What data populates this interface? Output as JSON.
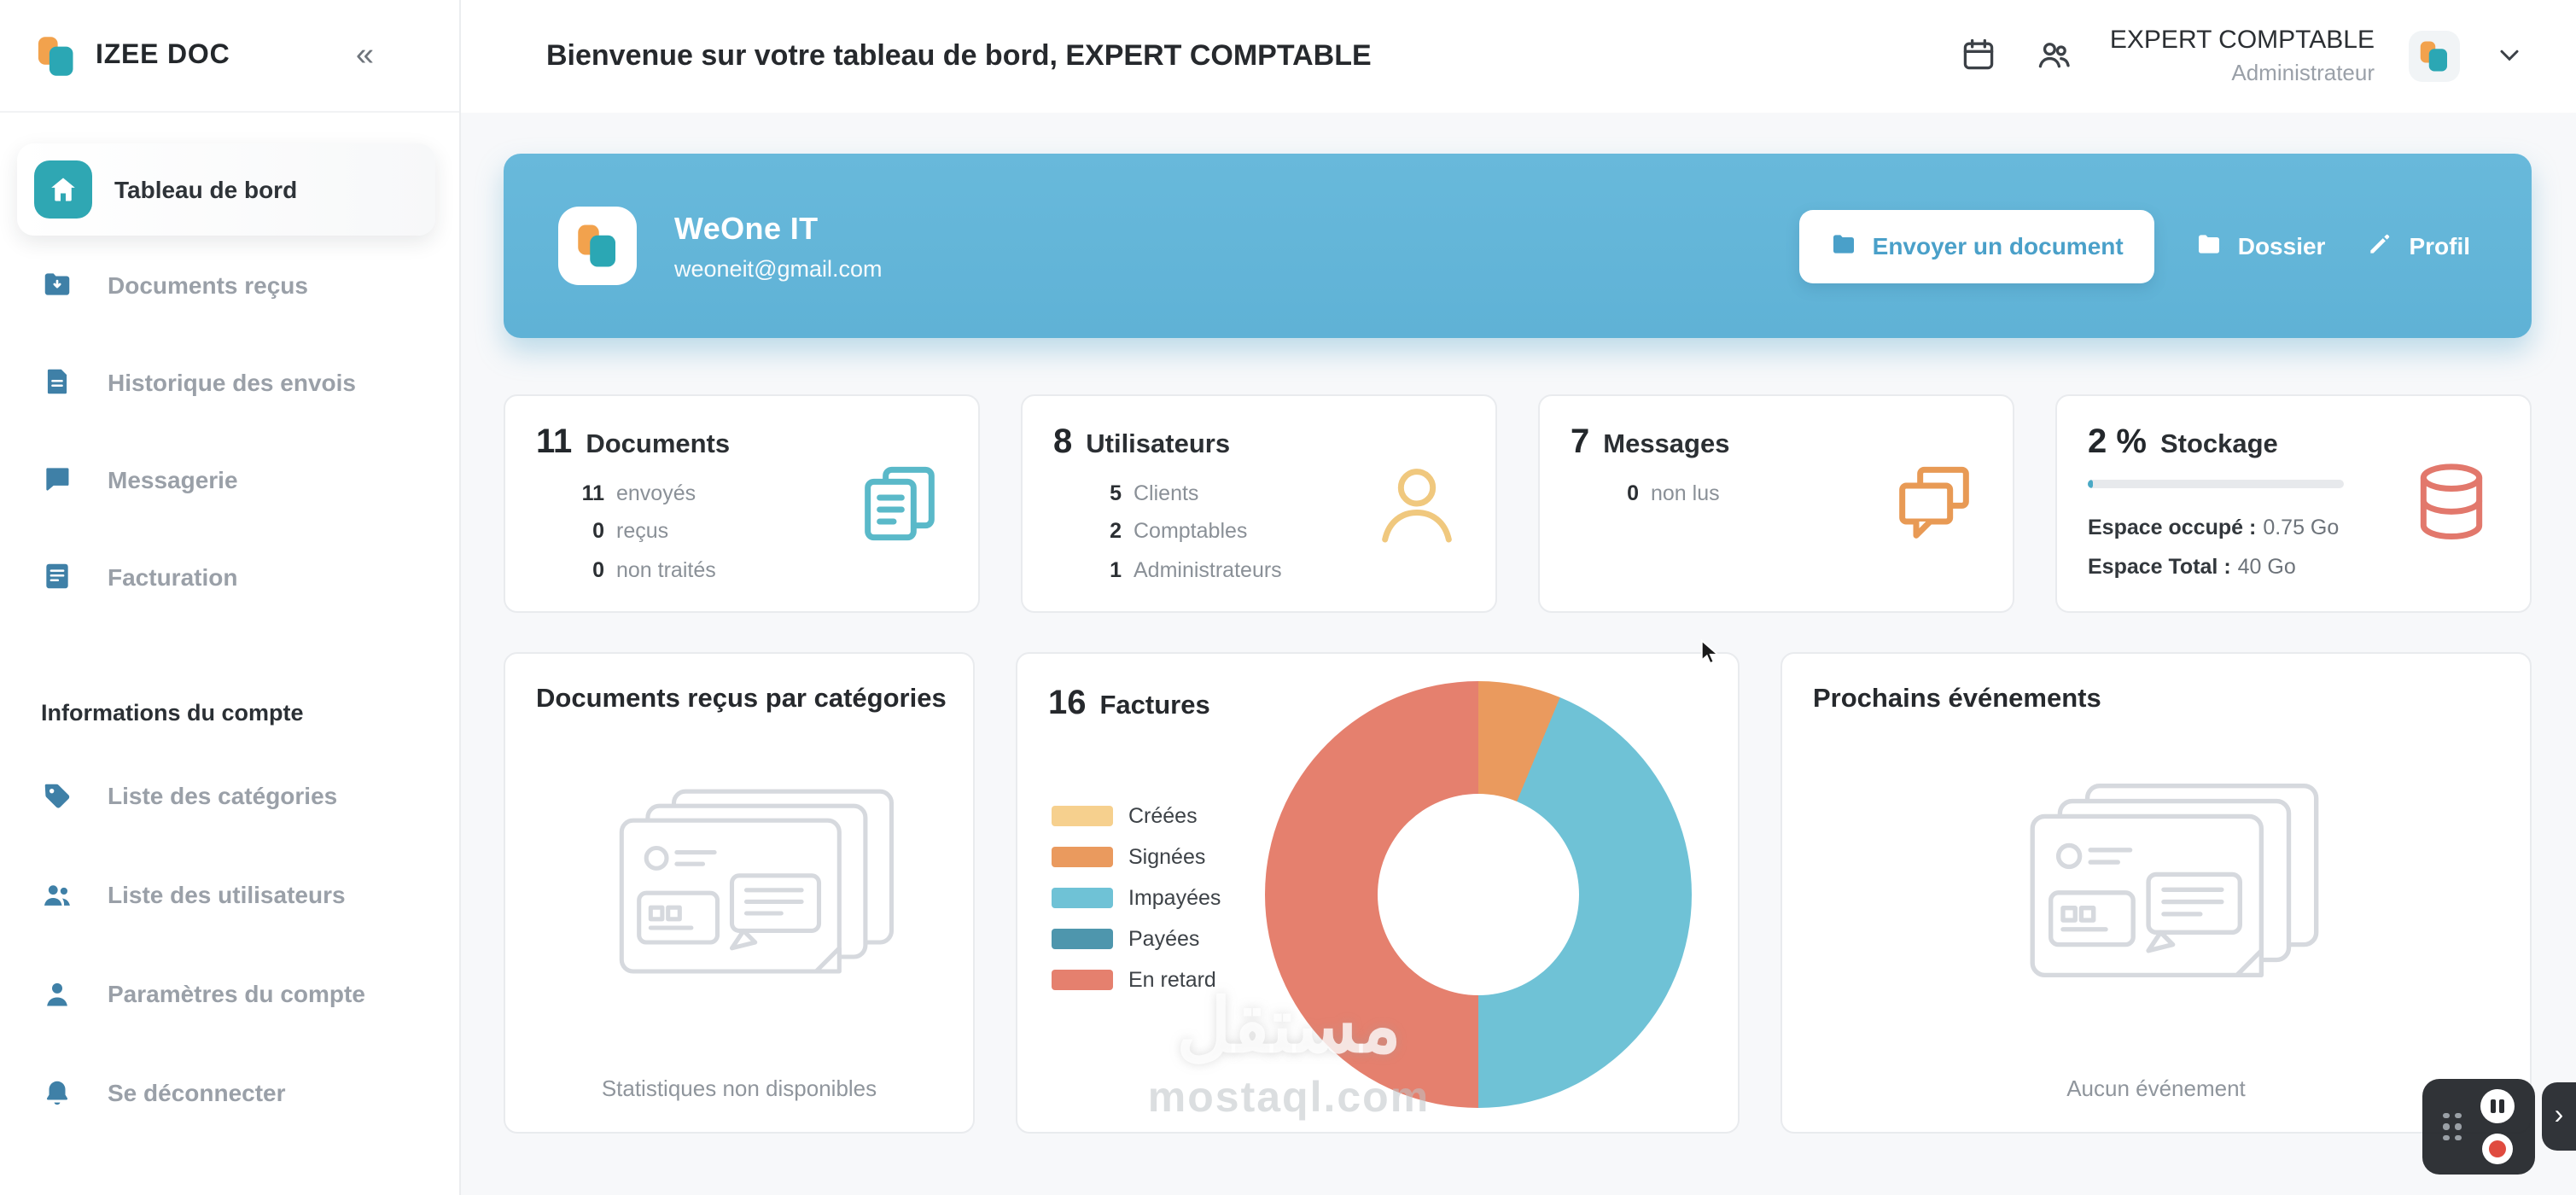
{
  "brand": {
    "name": "IZEE DOC",
    "collapse": "«"
  },
  "colors": {
    "accent_teal": "#2fa7b3",
    "accent_orange": "#f2a24d",
    "banner_blue": "#63b5d8",
    "icon_blue": "#3f80a7"
  },
  "header": {
    "welcome": "Bienvenue sur votre tableau de bord, EXPERT COMPTABLE",
    "account": {
      "name": "EXPERT COMPTABLE",
      "role": "Administrateur"
    }
  },
  "sidebar": {
    "items": [
      {
        "label": "Tableau de bord",
        "icon": "home",
        "active": true
      },
      {
        "label": "Documents reçus",
        "icon": "folder-download"
      },
      {
        "label": "Historique des envois",
        "icon": "history-file"
      },
      {
        "label": "Messagerie",
        "icon": "message"
      },
      {
        "label": "Facturation",
        "icon": "invoice"
      }
    ],
    "section_title": "Informations du compte",
    "account_items": [
      {
        "label": "Liste des catégories",
        "icon": "tag"
      },
      {
        "label": "Liste des utilisateurs",
        "icon": "users"
      },
      {
        "label": "Paramètres du compte",
        "icon": "user"
      },
      {
        "label": "Se déconnecter",
        "icon": "logout-bell"
      }
    ]
  },
  "banner": {
    "company": "WeOne IT",
    "email": "weoneit@gmail.com",
    "buttons": {
      "send": "Envoyer un document",
      "folder": "Dossier",
      "profile": "Profil"
    }
  },
  "stats": {
    "documents": {
      "value": "11",
      "label": "Documents",
      "lines": [
        {
          "num": "11",
          "text": "envoyés"
        },
        {
          "num": "0",
          "text": "reçus"
        },
        {
          "num": "0",
          "text": "non traités"
        }
      ]
    },
    "users": {
      "value": "8",
      "label": "Utilisateurs",
      "lines": [
        {
          "num": "5",
          "text": "Clients"
        },
        {
          "num": "2",
          "text": "Comptables"
        },
        {
          "num": "1",
          "text": "Administrateurs"
        }
      ]
    },
    "messages": {
      "value": "7",
      "label": "Messages",
      "lines": [
        {
          "num": "0",
          "text": "non lus"
        }
      ]
    },
    "storage": {
      "value": "2 %",
      "label": "Stockage",
      "percent": 2,
      "used_label": "Espace occupé :",
      "used_value": "0.75 Go",
      "total_label": "Espace Total :",
      "total_value": "40 Go"
    }
  },
  "cards": {
    "categories": {
      "title": "Documents reçus par catégories",
      "empty": "Statistiques non disponibles"
    },
    "invoices": {
      "count": "16",
      "title": "Factures"
    },
    "events": {
      "title": "Prochains événements",
      "empty": "Aucun événement"
    }
  },
  "chart_data": {
    "type": "pie",
    "donut": true,
    "title": "16 Factures",
    "total": 16,
    "legend_position": "left",
    "series": [
      {
        "name": "Créées",
        "value": 0,
        "color": "#f6d08e"
      },
      {
        "name": "Signées",
        "value": 1,
        "color": "#ea9a5e"
      },
      {
        "name": "Impayées",
        "value": 7,
        "color": "#6fc2d6"
      },
      {
        "name": "Payées",
        "value": 0,
        "color": "#4e96ad"
      },
      {
        "name": "En retard",
        "value": 8,
        "color": "#e5806e"
      }
    ]
  },
  "watermark": {
    "line1": "مستقل",
    "line2": "mostaql.com"
  },
  "recorder": {
    "expand_icon": "›"
  }
}
